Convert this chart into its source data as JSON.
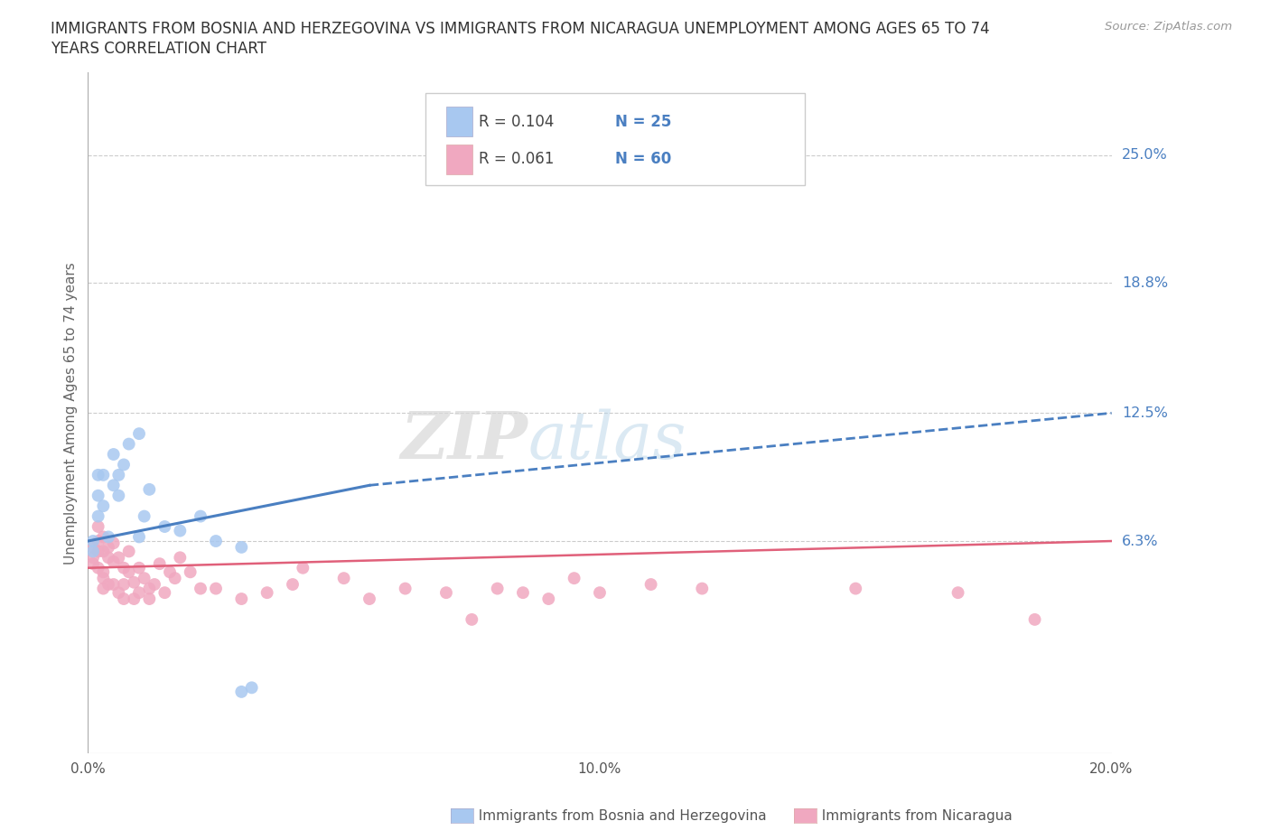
{
  "title_line1": "IMMIGRANTS FROM BOSNIA AND HERZEGOVINA VS IMMIGRANTS FROM NICARAGUA UNEMPLOYMENT AMONG AGES 65 TO 74",
  "title_line2": "YEARS CORRELATION CHART",
  "source": "Source: ZipAtlas.com",
  "xlabel_bottom": "Immigrants from Bosnia and Herzegovina",
  "xlabel_bottom2": "Immigrants from Nicaragua",
  "ylabel": "Unemployment Among Ages 65 to 74 years",
  "xlim": [
    0.0,
    0.2
  ],
  "ylim": [
    -0.04,
    0.29
  ],
  "yticks": [
    0.063,
    0.125,
    0.188,
    0.25
  ],
  "ytick_labels": [
    "6.3%",
    "12.5%",
    "18.8%",
    "25.0%"
  ],
  "xticks": [
    0.0,
    0.05,
    0.1,
    0.15,
    0.2
  ],
  "xtick_labels": [
    "0.0%",
    "",
    "10.0%",
    "",
    "20.0%"
  ],
  "color_bosnia": "#a8c8f0",
  "color_nicaragua": "#f0a8c0",
  "color_trend_bosnia": "#4a7fc1",
  "color_trend_nicaragua": "#e0607a",
  "legend_R_bosnia": "R = 0.104",
  "legend_N_bosnia": "N = 25",
  "legend_R_nicaragua": "R = 0.061",
  "legend_N_nicaragua": "N = 60",
  "bosnia_x": [
    0.001,
    0.001,
    0.002,
    0.002,
    0.002,
    0.003,
    0.003,
    0.004,
    0.005,
    0.005,
    0.006,
    0.006,
    0.007,
    0.008,
    0.01,
    0.01,
    0.011,
    0.012,
    0.015,
    0.018,
    0.022,
    0.025,
    0.03,
    0.03,
    0.032
  ],
  "bosnia_y": [
    0.063,
    0.058,
    0.075,
    0.085,
    0.095,
    0.08,
    0.095,
    0.065,
    0.09,
    0.105,
    0.085,
    0.095,
    0.1,
    0.11,
    0.115,
    0.065,
    0.075,
    0.088,
    0.07,
    0.068,
    0.075,
    0.063,
    0.06,
    -0.01,
    -0.008
  ],
  "nicaragua_x": [
    0.001,
    0.001,
    0.001,
    0.002,
    0.002,
    0.002,
    0.002,
    0.003,
    0.003,
    0.003,
    0.003,
    0.003,
    0.004,
    0.004,
    0.004,
    0.005,
    0.005,
    0.005,
    0.006,
    0.006,
    0.007,
    0.007,
    0.007,
    0.008,
    0.008,
    0.009,
    0.009,
    0.01,
    0.01,
    0.011,
    0.012,
    0.012,
    0.013,
    0.014,
    0.015,
    0.016,
    0.017,
    0.018,
    0.02,
    0.022,
    0.025,
    0.03,
    0.035,
    0.04,
    0.042,
    0.05,
    0.055,
    0.062,
    0.07,
    0.075,
    0.08,
    0.085,
    0.09,
    0.095,
    0.1,
    0.11,
    0.12,
    0.15,
    0.17,
    0.185
  ],
  "nicaragua_y": [
    0.06,
    0.055,
    0.052,
    0.058,
    0.063,
    0.07,
    0.05,
    0.045,
    0.058,
    0.065,
    0.048,
    0.04,
    0.055,
    0.06,
    0.042,
    0.053,
    0.062,
    0.042,
    0.038,
    0.055,
    0.05,
    0.042,
    0.035,
    0.048,
    0.058,
    0.043,
    0.035,
    0.05,
    0.038,
    0.045,
    0.04,
    0.035,
    0.042,
    0.052,
    0.038,
    0.048,
    0.045,
    0.055,
    0.048,
    0.04,
    0.04,
    0.035,
    0.038,
    0.042,
    0.05,
    0.045,
    0.035,
    0.04,
    0.038,
    0.025,
    0.04,
    0.038,
    0.035,
    0.045,
    0.038,
    0.042,
    0.04,
    0.04,
    0.038,
    0.025
  ],
  "watermark_zip": "ZIP",
  "watermark_atlas": "atlas",
  "background_color": "#ffffff",
  "trend_bosnia_x0": 0.0,
  "trend_bosnia_y0": 0.063,
  "trend_bosnia_x1": 0.055,
  "trend_bosnia_y1": 0.09,
  "trend_bosnia_x1_dashed": 0.055,
  "trend_bosnia_y1_dashed": 0.09,
  "trend_bosnia_x2": 0.2,
  "trend_bosnia_y2": 0.125,
  "trend_nicaragua_x0": 0.0,
  "trend_nicaragua_y0": 0.05,
  "trend_nicaragua_x1": 0.2,
  "trend_nicaragua_y1": 0.063
}
